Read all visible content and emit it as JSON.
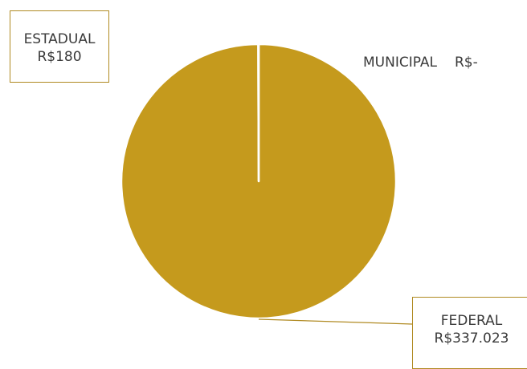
{
  "chart_data": {
    "type": "pie",
    "categories": [
      "FEDERAL",
      "ESTADUAL",
      "MUNICIPAL"
    ],
    "values": [
      337023,
      180,
      0
    ],
    "data_labels": {
      "federal": {
        "category": "FEDERAL",
        "value": "R$337.023"
      },
      "estadual": {
        "category": "ESTADUAL",
        "value": "R$180"
      },
      "municipal": {
        "category": "MUNICIPAL",
        "value": "R$-"
      }
    },
    "start_angle_deg": 0,
    "direction": "clockwise",
    "legend": "none"
  },
  "colors": {
    "slice_fill": "#c59a1d",
    "slice_separator": "#ffffff",
    "leader_line": "#b08a22",
    "label_border": "#b08a22",
    "label_text": "#3a3a3a"
  }
}
